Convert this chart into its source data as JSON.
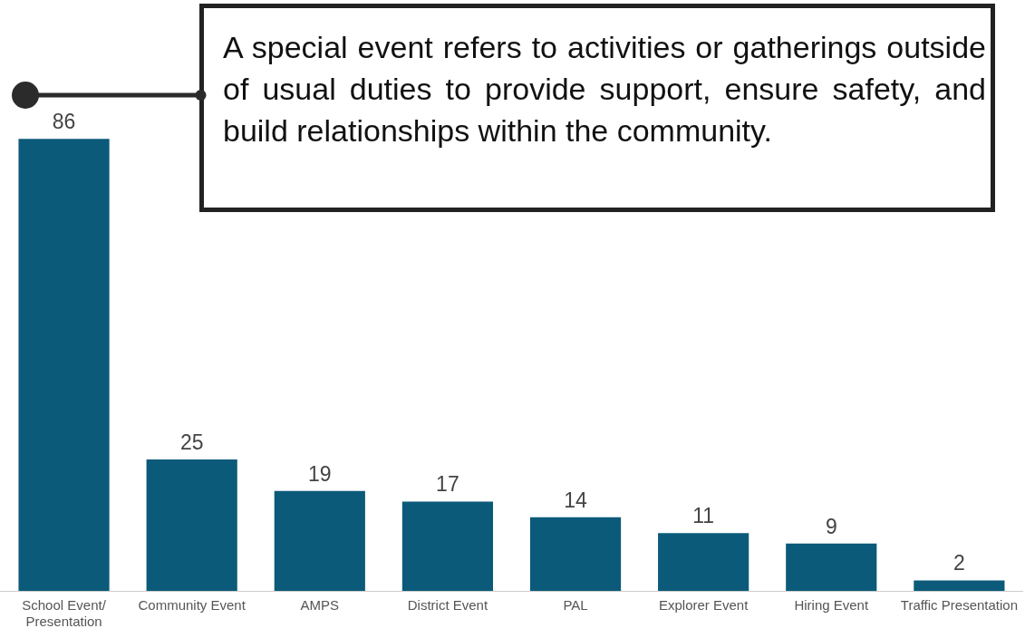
{
  "chart_data": {
    "type": "bar",
    "categories": [
      "School Event/ Presentation",
      "Community Event",
      "AMPS",
      "District Event",
      "PAL",
      "Explorer Event",
      "Hiring Event",
      "Traffic Presentation"
    ],
    "values": [
      86,
      25,
      19,
      17,
      14,
      11,
      9,
      2
    ],
    "color": "#0b5a7a",
    "data_labels": true,
    "grid": false,
    "annotations": [
      "A special event refers to activities or gatherings outside of usual duties to provide support, ensure safety, and build relationships within the community."
    ]
  }
}
